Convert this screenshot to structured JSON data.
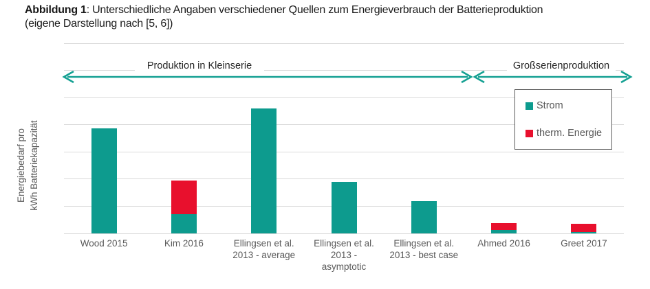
{
  "figure": {
    "title_bold": "Abbildung 1",
    "title_rest": ": Unterschiedliche Angaben verschiedener Quellen zum Energieverbrauch der Batterieproduktion",
    "title_line2": "(eigene Darstellung nach [5, 6])"
  },
  "chart_data": {
    "type": "bar",
    "stacked": true,
    "title": "",
    "xlabel": "",
    "ylabel": "Energiebedarf pro kWh Batteriekapazität",
    "ylabel_lines": [
      "Energiebedarf pro",
      "kWh Batteriekapazität"
    ],
    "y_axis_tick_labels": "none (axis is unlabeled, values below are relative units estimated from gridlines, 10 units per gridline interval)",
    "ylim": [
      0,
      70
    ],
    "gridline_count": 8,
    "grid": true,
    "legend_position": "upper right",
    "categories": [
      "Wood 2015",
      "Kim 2016",
      "Ellingsen et al. 2013 - average",
      "Ellingsen et al. 2013 - asymptotic",
      "Ellingsen et al. 2013 - best case",
      "Ahmed 2016",
      "Greet 2017"
    ],
    "series": [
      {
        "name": "Strom",
        "color": "#0d9b8e",
        "values": [
          38.7,
          7.0,
          46.0,
          19.0,
          12.0,
          1.3,
          0.5
        ]
      },
      {
        "name": "therm. Energie",
        "color": "#e8102d",
        "values": [
          0,
          12.4,
          0,
          0,
          0,
          2.5,
          3.0
        ]
      }
    ],
    "regions": [
      {
        "label": "Produktion in Kleinserie",
        "from_category_index": 0,
        "to_category_index": 4
      },
      {
        "label": "Großserienproduktion",
        "from_category_index": 5,
        "to_category_index": 6
      }
    ]
  },
  "colors": {
    "bar_strom": "#0d9b8e",
    "bar_therm_energie": "#e8102d",
    "arrow": "#14a092",
    "gridline": "#d9d9d9",
    "axis_text": "#595959",
    "region_label_text": "#262626",
    "legend_border": "#595959",
    "title_text": "#1a1a1a",
    "background": "#ffffff"
  }
}
